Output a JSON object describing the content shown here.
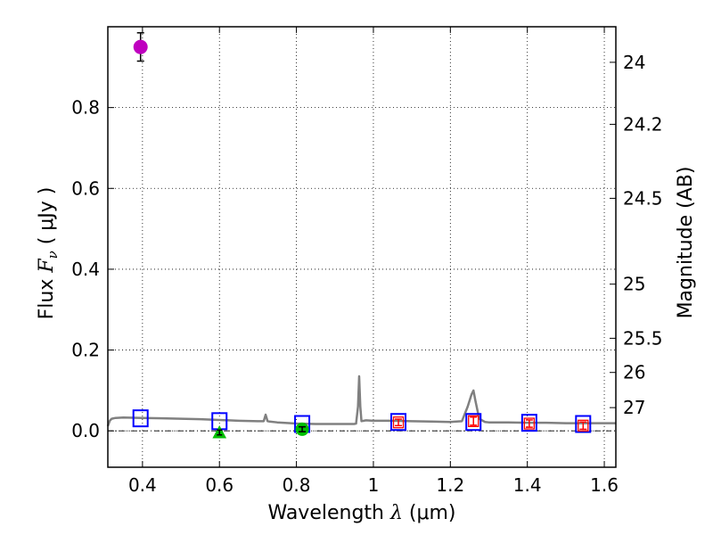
{
  "chart_data": {
    "type": "scatter",
    "xlabel": "Wavelength  λ (μm)",
    "xlabel_prefix": "Wavelength  ",
    "xlabel_symbol": "λ",
    "xlabel_unit": " (μm)",
    "ylabel": "Flux  Fν  ( μJy )",
    "ylabel_prefix": "Flux  ",
    "ylabel_symbol": "F",
    "ylabel_subscript": "ν",
    "ylabel_unit": "  ( μJy )",
    "y2label": "Magnitude (AB)",
    "xlim": [
      0.31,
      1.63
    ],
    "ylim": [
      -0.09,
      1.0
    ],
    "xticks": [
      0.4,
      0.6,
      0.8,
      1.0,
      1.2,
      1.4,
      1.6
    ],
    "xtick_labels": [
      "0.4",
      "0.6",
      "0.8",
      "1",
      "1.2",
      "1.4",
      "1.6"
    ],
    "yticks": [
      0.0,
      0.2,
      0.4,
      0.6,
      0.8
    ],
    "ytick_labels": [
      "0.0",
      "0.2",
      "0.4",
      "0.6",
      "0.8"
    ],
    "mag_ticks": [
      24,
      24.2,
      24.5,
      25,
      25.5,
      26,
      27
    ],
    "mag_tick_labels": [
      "24",
      "24.2",
      "24.5",
      "25",
      "25.5",
      "26",
      "27"
    ],
    "grid": true,
    "colors": {
      "spectrum": "#808080",
      "model_box": "#0000ff",
      "obs_box": "#ff0000",
      "purple_point": "#bf00bf",
      "green_point": "#00bf00",
      "errorbar": "#000000",
      "zero_line": "#000000"
    },
    "series": [
      {
        "name": "template spectrum",
        "kind": "line",
        "x": [
          0.31,
          0.315,
          0.32,
          0.33,
          0.35,
          0.4,
          0.45,
          0.5,
          0.55,
          0.6,
          0.65,
          0.7,
          0.715,
          0.72,
          0.725,
          0.73,
          0.75,
          0.8,
          0.85,
          0.9,
          0.95,
          0.955,
          0.96,
          0.963,
          0.966,
          0.969,
          0.975,
          0.98,
          1.0,
          1.05,
          1.1,
          1.15,
          1.2,
          1.23,
          1.245,
          1.255,
          1.26,
          1.265,
          1.275,
          1.29,
          1.3,
          1.35,
          1.4,
          1.45,
          1.5,
          1.55,
          1.6,
          1.63
        ],
        "y": [
          0.012,
          0.025,
          0.03,
          0.032,
          0.033,
          0.032,
          0.031,
          0.03,
          0.029,
          0.027,
          0.025,
          0.024,
          0.024,
          0.04,
          0.024,
          0.023,
          0.021,
          0.018,
          0.017,
          0.017,
          0.017,
          0.018,
          0.06,
          0.135,
          0.06,
          0.024,
          0.025,
          0.026,
          0.025,
          0.025,
          0.024,
          0.023,
          0.022,
          0.024,
          0.06,
          0.09,
          0.1,
          0.075,
          0.03,
          0.022,
          0.021,
          0.021,
          0.02,
          0.02,
          0.019,
          0.019,
          0.019,
          0.019
        ]
      },
      {
        "name": "model photometry",
        "kind": "open-square",
        "x": [
          0.395,
          0.6,
          0.815,
          1.065,
          1.26,
          1.405,
          1.545
        ],
        "y": [
          0.031,
          0.024,
          0.017,
          0.022,
          0.022,
          0.02,
          0.017
        ]
      },
      {
        "name": "observed photometry",
        "kind": "open-square",
        "x": [
          1.065,
          1.26,
          1.405,
          1.545
        ],
        "y": [
          0.021,
          0.024,
          0.018,
          0.013
        ],
        "yerr": [
          0.008,
          0.01,
          0.009,
          0.009
        ]
      },
      {
        "name": "purple point",
        "kind": "filled-circle",
        "x": [
          0.395
        ],
        "y": [
          0.95
        ],
        "yerr": [
          0.035
        ]
      },
      {
        "name": "green circle",
        "kind": "filled-circle",
        "x": [
          0.815
        ],
        "y": [
          0.004
        ],
        "yerr": [
          0.006
        ]
      },
      {
        "name": "green triangle",
        "kind": "filled-triangle",
        "x": [
          0.6
        ],
        "y": [
          -0.004
        ],
        "yerr": [
          0.006
        ]
      }
    ]
  }
}
